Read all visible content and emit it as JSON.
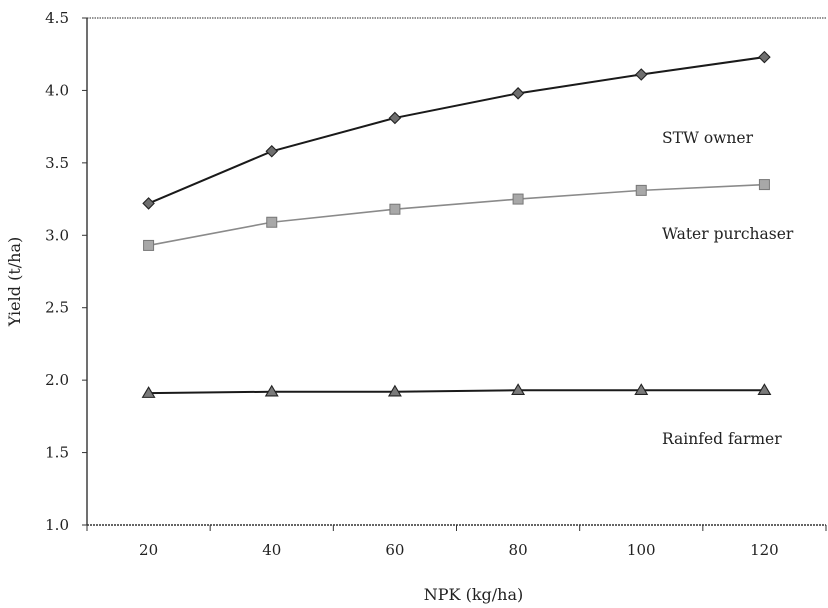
{
  "chart_data": {
    "type": "line",
    "title": "",
    "xlabel": "NPK (kg/ha)",
    "ylabel": "Yield (t/ha)",
    "x": [
      20,
      40,
      60,
      80,
      100,
      120
    ],
    "xlim": [
      10,
      130
    ],
    "ylim": [
      1.0,
      4.5
    ],
    "y_ticks": [
      "1.0",
      "1.5",
      "2.0",
      "2.5",
      "3.0",
      "3.5",
      "4.0",
      "4.5"
    ],
    "x_ticks": [
      "20",
      "40",
      "60",
      "80",
      "100",
      "120"
    ],
    "grid": false,
    "legend": "inline labels at right",
    "series": [
      {
        "name": "STW owner",
        "marker": "diamond",
        "line_color": "#1a1a1a",
        "marker_fill": "#6e6e6e",
        "values": [
          3.22,
          3.58,
          3.81,
          3.98,
          4.11,
          4.23
        ]
      },
      {
        "name": "Water purchaser",
        "marker": "square",
        "line_color": "#8a8a8a",
        "marker_fill": "#a8a8a8",
        "values": [
          2.93,
          3.09,
          3.18,
          3.25,
          3.31,
          3.35
        ]
      },
      {
        "name": "Rainfed farmer",
        "marker": "triangle",
        "line_color": "#1a1a1a",
        "marker_fill": "#7a7a7a",
        "values": [
          1.91,
          1.92,
          1.92,
          1.93,
          1.93,
          1.93
        ]
      }
    ]
  }
}
